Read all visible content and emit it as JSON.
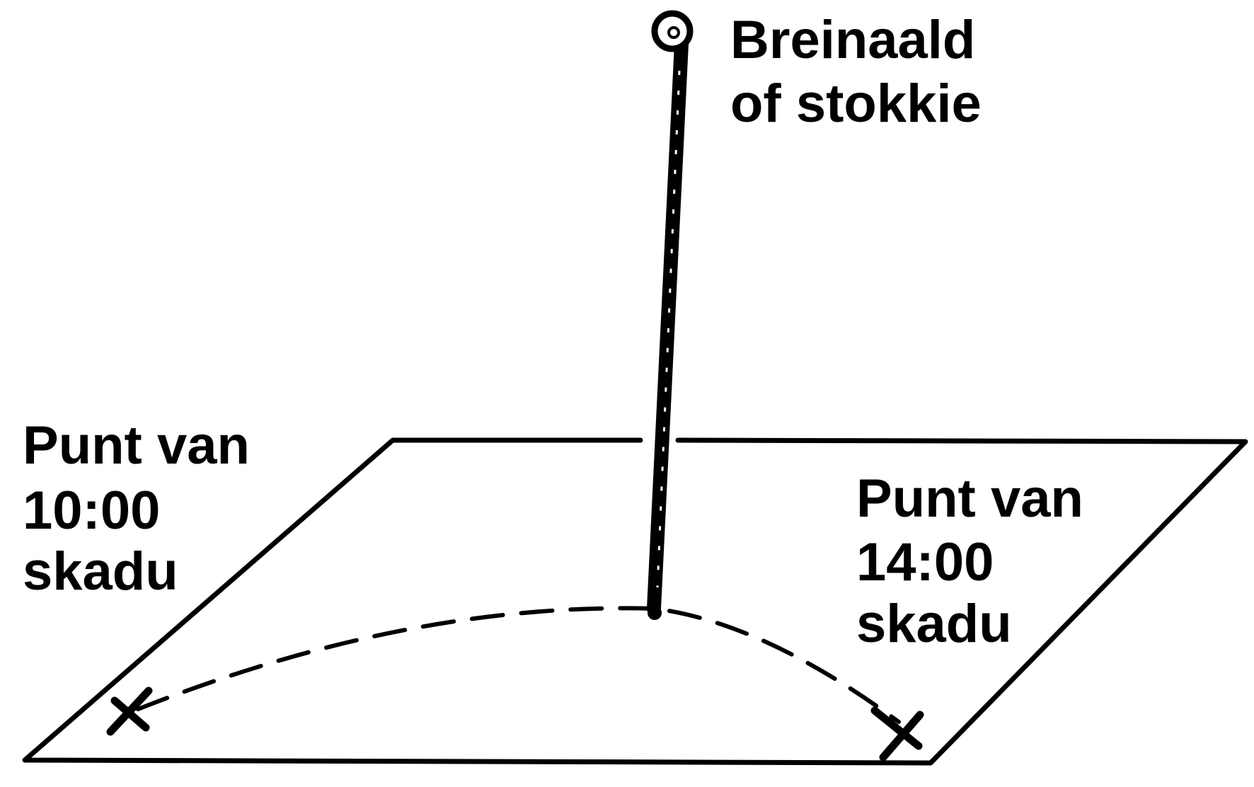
{
  "labels": {
    "needle_line1": "Breinaald",
    "needle_line2": "of stokkie",
    "left_line1": "Punt van",
    "left_line2": "10:00",
    "left_line3": "skadu",
    "right_line1": "Punt van",
    "right_line2": "14:00",
    "right_line3": "skadu"
  },
  "colors": {
    "ink": "#000000",
    "background": "#ffffff"
  }
}
